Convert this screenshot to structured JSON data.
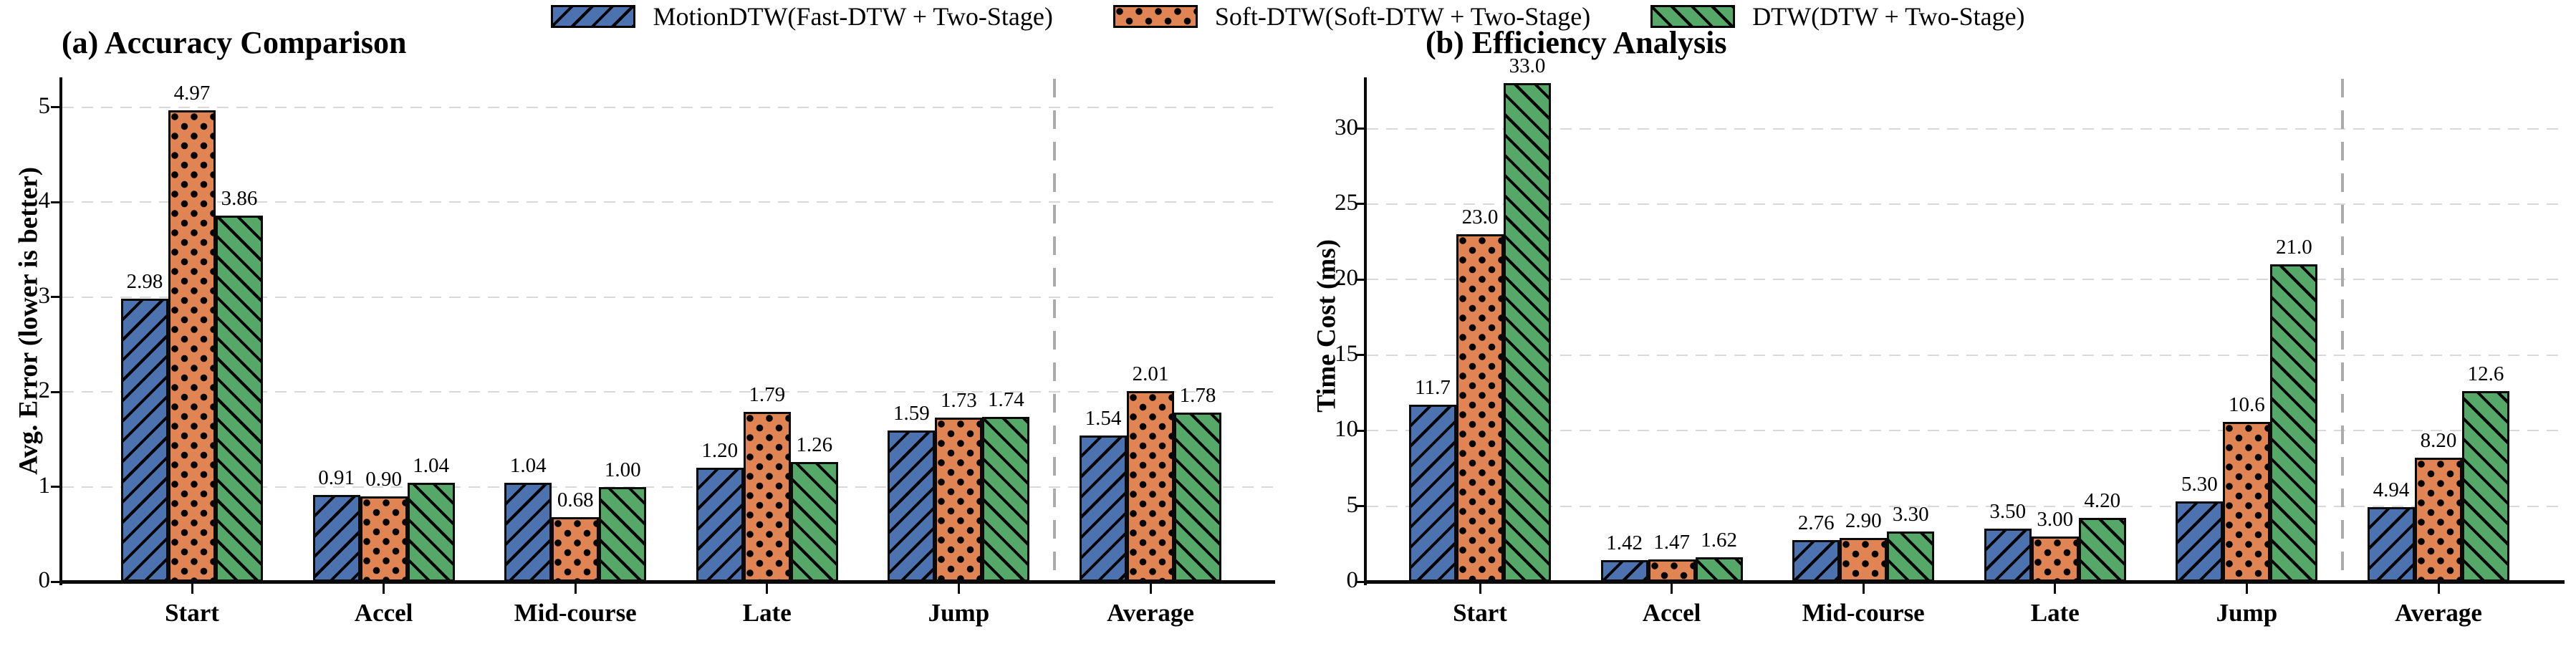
{
  "legend": {
    "items": [
      {
        "label": "MotionDTW(Fast-DTW + Two-Stage)",
        "color": "#4C72B0",
        "hatch": "forward-diagonal"
      },
      {
        "label": "Soft-DTW(Soft-DTW + Two-Stage)",
        "color": "#DF8452",
        "hatch": "dots"
      },
      {
        "label": "DTW(DTW + Two-Stage)",
        "color": "#55A868",
        "hatch": "back-diagonal"
      }
    ]
  },
  "chart_data": [
    {
      "type": "bar",
      "title": "(a) Accuracy Comparison",
      "ylabel": "Avg. Error (lower is better)",
      "xlabel": "",
      "categories": [
        "Start",
        "Accel",
        "Mid-course",
        "Late",
        "Jump",
        "Average"
      ],
      "ytick_labels": [
        "0",
        "1",
        "2",
        "3",
        "4",
        "5"
      ],
      "ylim": [
        0,
        5.3
      ],
      "grid": true,
      "legend_position": "top-center-shared",
      "separator_before_category": "Average",
      "series": [
        {
          "name": "MotionDTW(Fast-DTW + Two-Stage)",
          "values": [
            2.98,
            0.91,
            1.04,
            1.2,
            1.59,
            1.54
          ],
          "labels": [
            "2.98",
            "0.91",
            "1.04",
            "1.20",
            "1.59",
            "1.54"
          ]
        },
        {
          "name": "Soft-DTW(Soft-DTW + Two-Stage)",
          "values": [
            4.97,
            0.9,
            0.68,
            1.79,
            1.73,
            2.01
          ],
          "labels": [
            "4.97",
            "0.90",
            "0.68",
            "1.79",
            "1.73",
            "2.01"
          ]
        },
        {
          "name": "DTW(DTW + Two-Stage)",
          "values": [
            3.86,
            1.04,
            1.0,
            1.26,
            1.74,
            1.78
          ],
          "labels": [
            "3.86",
            "1.04",
            "1.00",
            "1.26",
            "1.74",
            "1.78"
          ]
        }
      ]
    },
    {
      "type": "bar",
      "title": "(b) Efficiency Analysis",
      "ylabel": "Time Cost (ms)",
      "xlabel": "",
      "categories": [
        "Start",
        "Accel",
        "Mid-course",
        "Late",
        "Jump",
        "Average"
      ],
      "ytick_labels": [
        "0",
        "5",
        "10",
        "15",
        "20",
        "25",
        "30"
      ],
      "ylim": [
        0,
        33.3
      ],
      "grid": true,
      "legend_position": "top-center-shared",
      "separator_before_category": "Average",
      "series": [
        {
          "name": "MotionDTW(Fast-DTW + Two-Stage)",
          "values": [
            11.7,
            1.42,
            2.76,
            3.5,
            5.3,
            4.94
          ],
          "labels": [
            "11.7",
            "1.42",
            "2.76",
            "3.50",
            "5.30",
            "4.94"
          ]
        },
        {
          "name": "Soft-DTW(Soft-DTW + Two-Stage)",
          "values": [
            23.0,
            1.47,
            2.9,
            3.0,
            10.6,
            8.2
          ],
          "labels": [
            "23.0",
            "1.47",
            "2.90",
            "3.00",
            "10.6",
            "8.20"
          ]
        },
        {
          "name": "DTW(DTW + Two-Stage)",
          "values": [
            33.0,
            1.62,
            3.3,
            4.2,
            21.0,
            12.6
          ],
          "labels": [
            "33.0",
            "1.62",
            "3.30",
            "4.20",
            "21.0",
            "12.6"
          ]
        }
      ]
    }
  ]
}
